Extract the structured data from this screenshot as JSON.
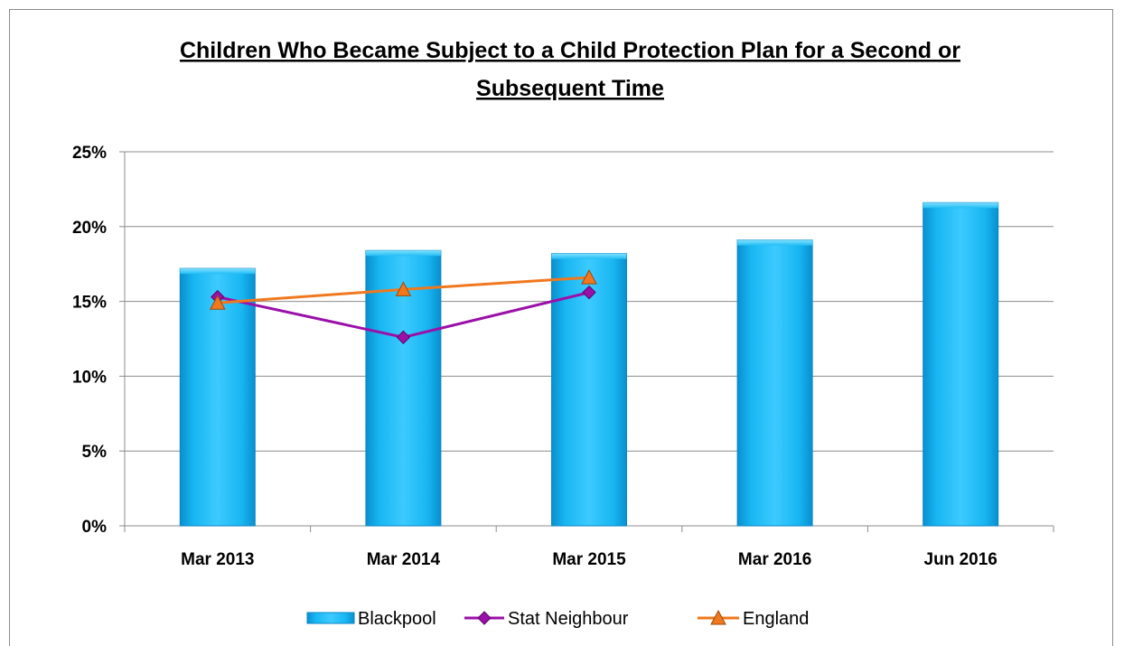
{
  "chart_data": {
    "type": "bar",
    "title_lines": [
      "Children Who Became Subject to a Child Protection Plan for a Second or",
      "Subsequent Time"
    ],
    "categories": [
      "Mar 2013",
      "Mar 2014",
      "Mar 2015",
      "Mar 2016",
      "Jun 2016"
    ],
    "y_ticks": [
      "0%",
      "5%",
      "10%",
      "15%",
      "20%",
      "25%"
    ],
    "ylim": [
      0,
      25
    ],
    "grid": true,
    "legend_position": "bottom",
    "series": [
      {
        "name": "Blackpool",
        "kind": "bar",
        "values": [
          17.2,
          18.4,
          18.2,
          19.1,
          21.6
        ],
        "color": "#00B0F0"
      },
      {
        "name": "Stat Neighbour",
        "kind": "line",
        "marker": "diamond",
        "values": [
          15.3,
          12.6,
          15.6,
          null,
          null
        ],
        "color": "#9B10A8"
      },
      {
        "name": "England",
        "kind": "line",
        "marker": "triangle",
        "values": [
          14.9,
          15.8,
          16.6,
          null,
          null
        ],
        "color": "#F0781E"
      }
    ]
  }
}
